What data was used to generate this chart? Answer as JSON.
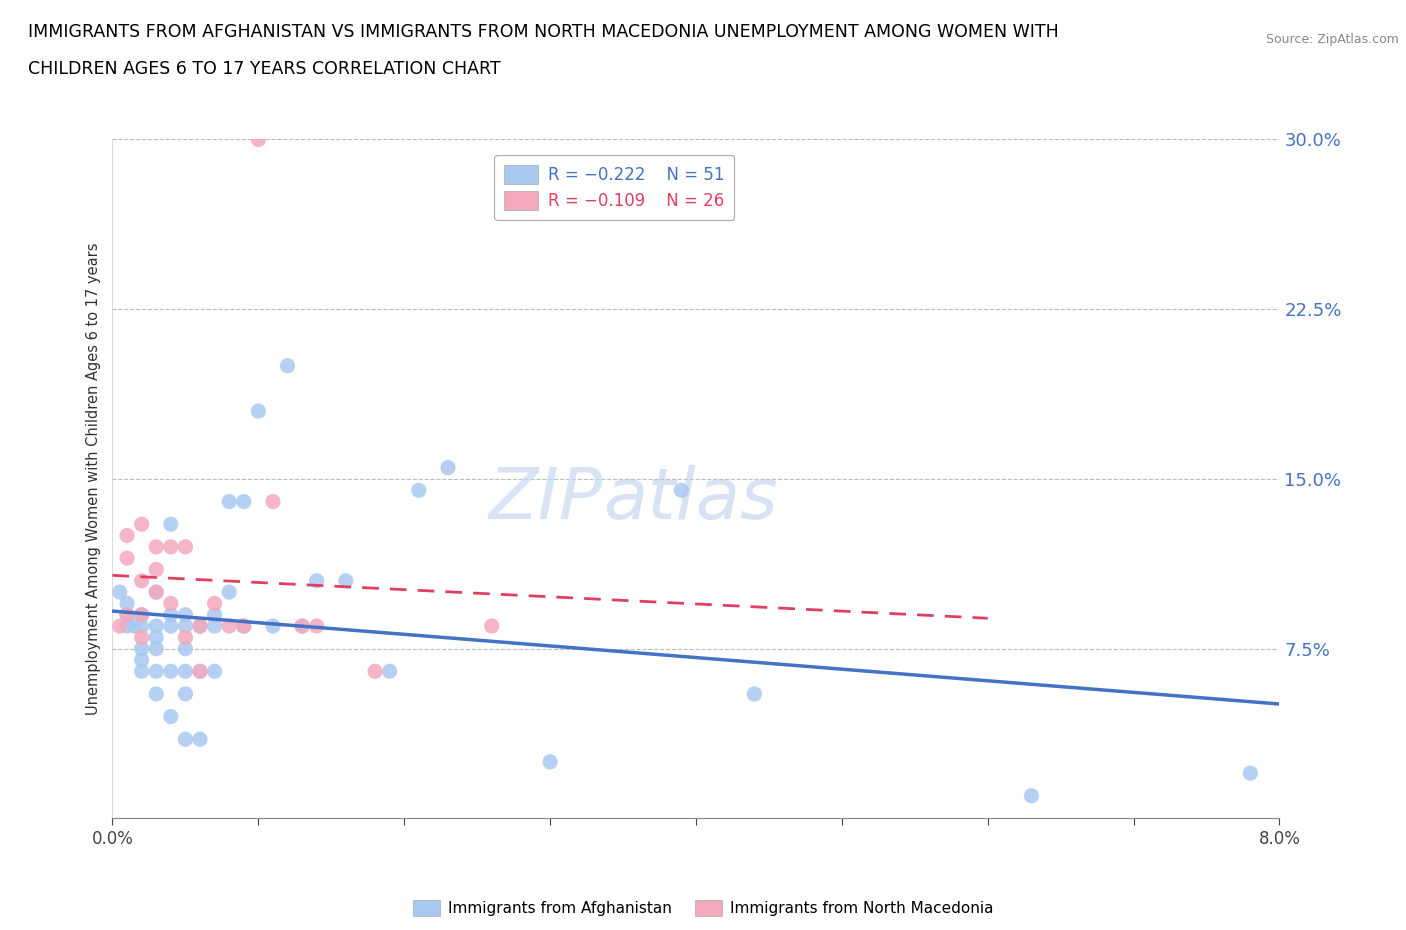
{
  "title_line1": "IMMIGRANTS FROM AFGHANISTAN VS IMMIGRANTS FROM NORTH MACEDONIA UNEMPLOYMENT AMONG WOMEN WITH",
  "title_line2": "CHILDREN AGES 6 TO 17 YEARS CORRELATION CHART",
  "source": "Source: ZipAtlas.com",
  "ylabel": "Unemployment Among Women with Children Ages 6 to 17 years",
  "xlim": [
    0.0,
    0.08
  ],
  "ylim": [
    0.0,
    0.3
  ],
  "xticks": [
    0.0,
    0.01,
    0.02,
    0.03,
    0.04,
    0.05,
    0.06,
    0.07,
    0.08
  ],
  "xticklabels": [
    "0.0%",
    "",
    "",
    "",
    "",
    "",
    "",
    "",
    "8.0%"
  ],
  "yticks_right": [
    0.0,
    0.075,
    0.15,
    0.225,
    0.3
  ],
  "ytick_labels_right": [
    "",
    "7.5%",
    "15.0%",
    "22.5%",
    "30.0%"
  ],
  "legend_r1": "R = −0.222",
  "legend_n1": "N = 51",
  "legend_r2": "R = −0.109",
  "legend_n2": "N = 26",
  "color_afghanistan": "#A8C8F0",
  "color_n_macedonia": "#F4A8BC",
  "color_line_afghanistan": "#4472C4",
  "color_line_n_macedonia": "#E04060",
  "watermark_zip": "ZIP",
  "watermark_atlas": "atlas",
  "afghanistan_x": [
    0.0005,
    0.001,
    0.001,
    0.001,
    0.0015,
    0.002,
    0.002,
    0.002,
    0.002,
    0.002,
    0.003,
    0.003,
    0.003,
    0.003,
    0.003,
    0.003,
    0.004,
    0.004,
    0.004,
    0.004,
    0.004,
    0.005,
    0.005,
    0.005,
    0.005,
    0.005,
    0.005,
    0.006,
    0.006,
    0.006,
    0.007,
    0.007,
    0.007,
    0.008,
    0.008,
    0.009,
    0.009,
    0.01,
    0.011,
    0.012,
    0.013,
    0.014,
    0.016,
    0.019,
    0.021,
    0.023,
    0.03,
    0.039,
    0.044,
    0.063,
    0.078
  ],
  "afghanistan_y": [
    0.1,
    0.09,
    0.095,
    0.085,
    0.085,
    0.085,
    0.09,
    0.075,
    0.07,
    0.065,
    0.085,
    0.1,
    0.08,
    0.075,
    0.065,
    0.055,
    0.13,
    0.09,
    0.085,
    0.065,
    0.045,
    0.085,
    0.09,
    0.065,
    0.075,
    0.055,
    0.035,
    0.085,
    0.065,
    0.035,
    0.085,
    0.065,
    0.09,
    0.14,
    0.1,
    0.14,
    0.085,
    0.18,
    0.085,
    0.2,
    0.085,
    0.105,
    0.105,
    0.065,
    0.145,
    0.155,
    0.025,
    0.145,
    0.055,
    0.01,
    0.02
  ],
  "n_macedonia_x": [
    0.0005,
    0.001,
    0.001,
    0.001,
    0.002,
    0.002,
    0.002,
    0.002,
    0.003,
    0.003,
    0.003,
    0.004,
    0.004,
    0.005,
    0.005,
    0.006,
    0.006,
    0.007,
    0.008,
    0.009,
    0.01,
    0.011,
    0.013,
    0.014,
    0.018,
    0.026
  ],
  "n_macedonia_y": [
    0.085,
    0.125,
    0.115,
    0.09,
    0.13,
    0.105,
    0.09,
    0.08,
    0.12,
    0.11,
    0.1,
    0.12,
    0.095,
    0.12,
    0.08,
    0.085,
    0.065,
    0.095,
    0.085,
    0.085,
    0.3,
    0.14,
    0.085,
    0.085,
    0.065,
    0.085
  ]
}
